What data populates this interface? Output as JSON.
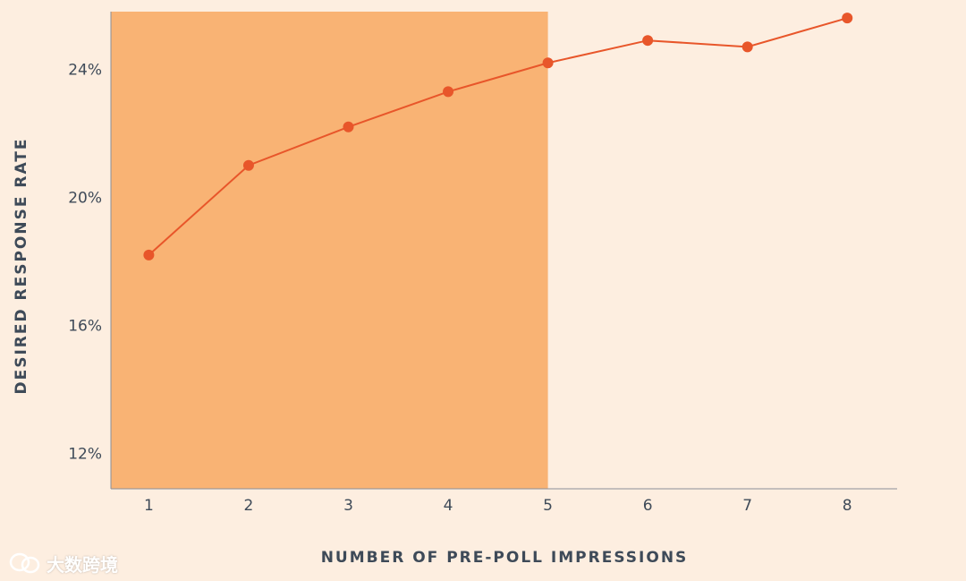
{
  "chart_data": {
    "type": "line",
    "title": "",
    "xlabel": "NUMBER OF PRE-POLL IMPRESSIONS",
    "ylabel": "DESIRED RESPONSE RATE",
    "x": [
      1,
      2,
      3,
      4,
      5,
      6,
      7,
      8
    ],
    "x_tick_labels": [
      "1",
      "2",
      "3",
      "4",
      "5",
      "6",
      "7",
      "8"
    ],
    "y_ticks": [
      12,
      16,
      20,
      24
    ],
    "y_tick_labels": [
      "12%",
      "16%",
      "20%",
      "24%"
    ],
    "ylim": [
      10.9,
      25.8
    ],
    "xlim": [
      0.62,
      8.5
    ],
    "series": [
      {
        "values": [
          18.2,
          21.0,
          22.2,
          23.3,
          24.2,
          24.9,
          24.7,
          25.6
        ]
      }
    ],
    "highlight_region": {
      "x_from": 0.62,
      "x_to": 5
    },
    "grid": false,
    "colors": {
      "line": "#e8562a",
      "highlight": "#f9b374",
      "background": "#fdeee0",
      "axis": "#8a8f99"
    }
  },
  "watermark": {
    "text": "大数跨境",
    "icon": "wechat-logo-icon"
  }
}
